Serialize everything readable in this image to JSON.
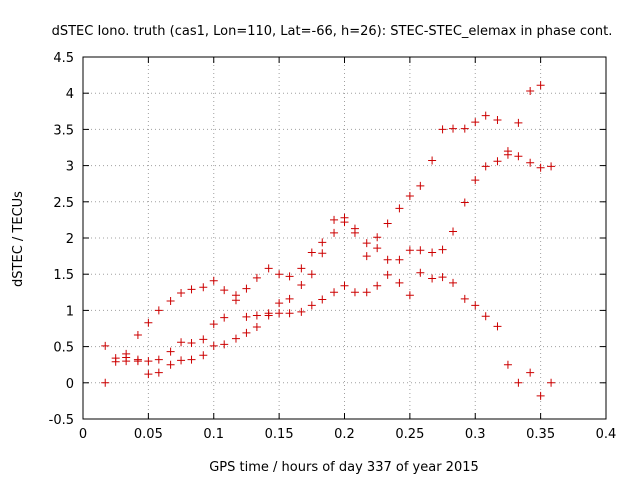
{
  "chart_data": {
    "type": "scatter",
    "title": "dSTEC Iono. truth (cas1, Lon=110, Lat=-66, h=26): STEC-STEC_elemax in phase cont.",
    "xlabel": "GPS time / hours of day 337 of year 2015",
    "ylabel": "dSTEC  / TECUs",
    "xlim": [
      0,
      0.4
    ],
    "ylim": [
      -0.5,
      4.5
    ],
    "xticks": [
      0,
      0.05,
      0.1,
      0.15,
      0.2,
      0.25,
      0.3,
      0.35,
      0.4
    ],
    "xtick_labels": [
      "0",
      "0.05",
      "0.1",
      "0.15",
      "0.2",
      "0.25",
      "0.3",
      "0.35",
      "0.4"
    ],
    "yticks": [
      -0.5,
      0,
      0.5,
      1,
      1.5,
      2,
      2.5,
      3,
      3.5,
      4,
      4.5
    ],
    "ytick_labels": [
      "-0.5",
      "0",
      "0.5",
      "1",
      "1.5",
      "2",
      "2.5",
      "3",
      "3.5",
      "4",
      "4.5"
    ],
    "grid": true,
    "marker": "+",
    "color": "#cc0000",
    "points": [
      [
        0.017,
        0.51
      ],
      [
        0.017,
        0.0
      ],
      [
        0.025,
        0.34
      ],
      [
        0.025,
        0.29
      ],
      [
        0.033,
        0.4
      ],
      [
        0.033,
        0.35
      ],
      [
        0.033,
        0.3
      ],
      [
        0.042,
        0.66
      ],
      [
        0.042,
        0.32
      ],
      [
        0.042,
        0.3
      ],
      [
        0.05,
        0.83
      ],
      [
        0.05,
        0.3
      ],
      [
        0.05,
        0.12
      ],
      [
        0.058,
        1.0
      ],
      [
        0.058,
        0.32
      ],
      [
        0.058,
        0.14
      ],
      [
        0.067,
        1.13
      ],
      [
        0.067,
        0.43
      ],
      [
        0.067,
        0.25
      ],
      [
        0.075,
        1.24
      ],
      [
        0.075,
        0.56
      ],
      [
        0.075,
        0.31
      ],
      [
        0.083,
        1.29
      ],
      [
        0.083,
        0.55
      ],
      [
        0.083,
        0.32
      ],
      [
        0.092,
        1.32
      ],
      [
        0.092,
        0.6
      ],
      [
        0.092,
        0.38
      ],
      [
        0.1,
        1.41
      ],
      [
        0.1,
        0.81
      ],
      [
        0.1,
        0.51
      ],
      [
        0.108,
        1.28
      ],
      [
        0.108,
        0.9
      ],
      [
        0.108,
        0.53
      ],
      [
        0.117,
        1.21
      ],
      [
        0.117,
        1.14
      ],
      [
        0.117,
        0.61
      ],
      [
        0.125,
        1.3
      ],
      [
        0.125,
        0.91
      ],
      [
        0.125,
        0.69
      ],
      [
        0.133,
        1.45
      ],
      [
        0.133,
        0.93
      ],
      [
        0.133,
        0.77
      ],
      [
        0.142,
        1.58
      ],
      [
        0.142,
        0.96
      ],
      [
        0.142,
        0.93
      ],
      [
        0.15,
        1.5
      ],
      [
        0.15,
        1.1
      ],
      [
        0.15,
        0.96
      ],
      [
        0.158,
        1.47
      ],
      [
        0.158,
        1.16
      ],
      [
        0.158,
        0.96
      ],
      [
        0.167,
        1.58
      ],
      [
        0.167,
        1.35
      ],
      [
        0.167,
        0.98
      ],
      [
        0.175,
        1.8
      ],
      [
        0.175,
        1.5
      ],
      [
        0.175,
        1.07
      ],
      [
        0.183,
        1.94
      ],
      [
        0.183,
        1.79
      ],
      [
        0.183,
        1.15
      ],
      [
        0.192,
        2.25
      ],
      [
        0.192,
        2.07
      ],
      [
        0.192,
        1.25
      ],
      [
        0.2,
        2.28
      ],
      [
        0.2,
        2.22
      ],
      [
        0.2,
        1.34
      ],
      [
        0.208,
        2.13
      ],
      [
        0.208,
        2.07
      ],
      [
        0.208,
        1.25
      ],
      [
        0.217,
        1.93
      ],
      [
        0.217,
        1.75
      ],
      [
        0.217,
        1.25
      ],
      [
        0.225,
        2.01
      ],
      [
        0.225,
        1.86
      ],
      [
        0.225,
        1.34
      ],
      [
        0.233,
        2.2
      ],
      [
        0.233,
        1.7
      ],
      [
        0.233,
        1.49
      ],
      [
        0.242,
        2.41
      ],
      [
        0.242,
        1.7
      ],
      [
        0.242,
        1.38
      ],
      [
        0.25,
        2.58
      ],
      [
        0.25,
        1.83
      ],
      [
        0.25,
        1.21
      ],
      [
        0.258,
        2.72
      ],
      [
        0.258,
        1.83
      ],
      [
        0.258,
        1.52
      ],
      [
        0.267,
        3.07
      ],
      [
        0.267,
        1.8
      ],
      [
        0.267,
        1.44
      ],
      [
        0.275,
        3.5
      ],
      [
        0.275,
        1.84
      ],
      [
        0.275,
        1.46
      ],
      [
        0.283,
        3.51
      ],
      [
        0.283,
        2.09
      ],
      [
        0.283,
        1.38
      ],
      [
        0.292,
        3.51
      ],
      [
        0.292,
        2.49
      ],
      [
        0.292,
        1.16
      ],
      [
        0.3,
        3.6
      ],
      [
        0.3,
        2.8
      ],
      [
        0.3,
        1.07
      ],
      [
        0.308,
        3.69
      ],
      [
        0.308,
        2.99
      ],
      [
        0.308,
        0.92
      ],
      [
        0.317,
        3.63
      ],
      [
        0.317,
        3.06
      ],
      [
        0.317,
        0.78
      ],
      [
        0.325,
        3.2
      ],
      [
        0.325,
        3.15
      ],
      [
        0.325,
        0.25
      ],
      [
        0.333,
        3.59
      ],
      [
        0.333,
        3.13
      ],
      [
        0.333,
        0.0
      ],
      [
        0.342,
        4.03
      ],
      [
        0.342,
        3.04
      ],
      [
        0.342,
        0.14
      ],
      [
        0.35,
        4.11
      ],
      [
        0.35,
        2.97
      ],
      [
        0.35,
        -0.18
      ],
      [
        0.358,
        2.99
      ],
      [
        0.358,
        0.0
      ]
    ]
  }
}
